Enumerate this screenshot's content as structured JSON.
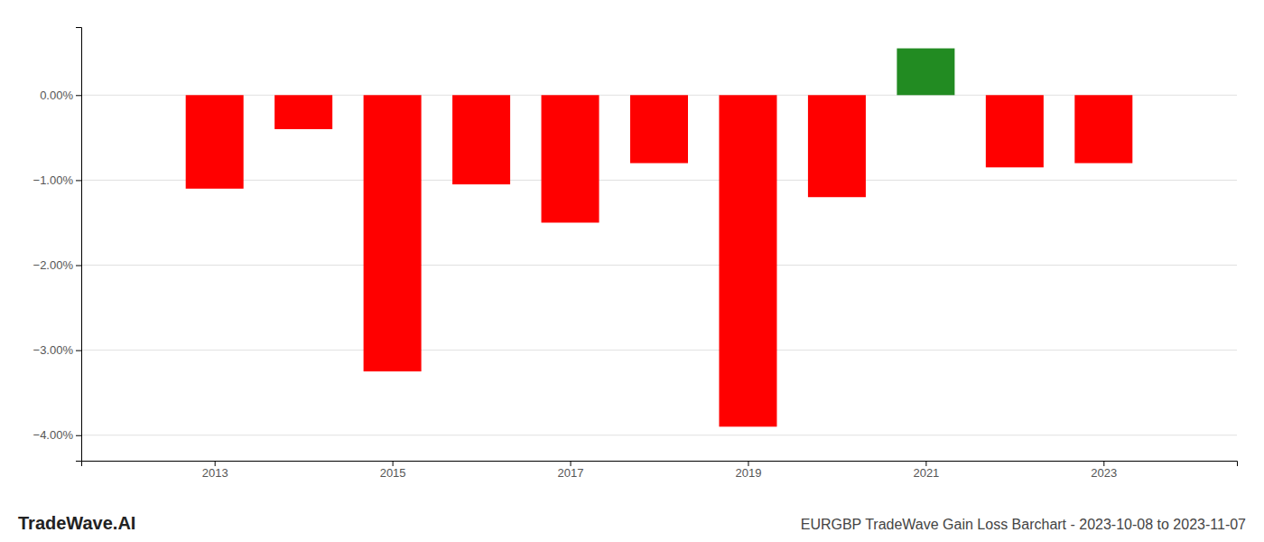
{
  "chart_data": {
    "type": "bar",
    "title": "EURGBP TradeWave Gain Loss Barchart - 2023-10-08 to 2023-11-07",
    "annotations": [
      "TradeWave.AI"
    ],
    "x": [
      2013,
      2014,
      2015,
      2016,
      2017,
      2018,
      2019,
      2020,
      2021,
      2022,
      2023
    ],
    "values": [
      -1.1,
      -0.4,
      -3.25,
      -1.05,
      -1.5,
      -0.8,
      -3.9,
      -1.2,
      0.55,
      -0.85,
      -0.8
    ],
    "colors": [
      "#ff0000",
      "#ff0000",
      "#ff0000",
      "#ff0000",
      "#ff0000",
      "#ff0000",
      "#ff0000",
      "#ff0000",
      "#228B22",
      "#ff0000",
      "#ff0000"
    ],
    "xlim": [
      2011.5,
      2024.5
    ],
    "xticks": [
      2013,
      2015,
      2017,
      2019,
      2021,
      2023
    ],
    "ylim": [
      -4.3,
      0.8
    ],
    "yticks": [
      {
        "value": 0.0,
        "label": "0.00%"
      },
      {
        "value": -1.0,
        "label": "−1.00%"
      },
      {
        "value": -2.0,
        "label": "−2.00%"
      },
      {
        "value": -3.0,
        "label": "−3.00%"
      },
      {
        "value": -4.0,
        "label": "−4.00%"
      }
    ],
    "grid": true
  }
}
